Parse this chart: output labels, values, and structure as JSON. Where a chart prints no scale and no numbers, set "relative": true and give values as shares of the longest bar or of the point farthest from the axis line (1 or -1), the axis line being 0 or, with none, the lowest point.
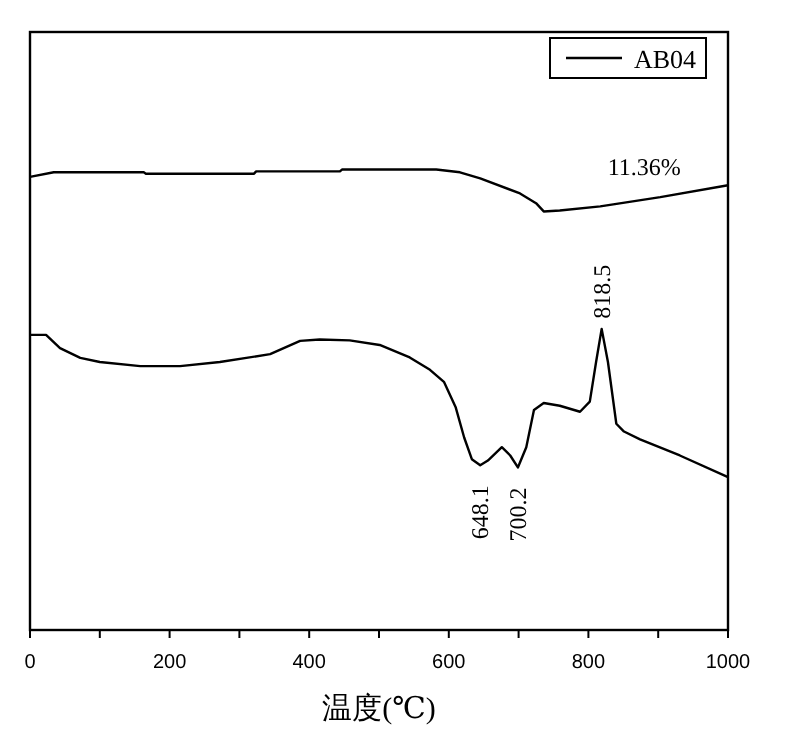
{
  "chart_data": {
    "type": "line",
    "relative": true,
    "xlabel": "温度(℃)",
    "xlim": [
      0,
      1000
    ],
    "xticks": [
      0,
      {
        "value": 100,
        "label": null
      },
      200,
      {
        "value": 300,
        "label": null
      },
      400,
      {
        "value": 500,
        "label": null
      },
      600,
      {
        "value": 700,
        "label": null
      },
      800,
      {
        "value": 900,
        "label": null
      },
      1000
    ],
    "tick_labels": "x",
    "legend": "top right",
    "grid": false,
    "marker": "none",
    "line_style": "solid",
    "series": [
      {
        "name": "AB04",
        "color": "#000000",
        "x": [
          0,
          34,
          163,
          166,
          321,
          324,
          444,
          447,
          582,
          616,
          645,
          702,
          725,
          736,
          759,
          817,
          903,
          1000
        ],
        "values": [
          0.984,
          0.994,
          0.994,
          0.991,
          0.991,
          0.996,
          0.996,
          1.0,
          1.0,
          0.994,
          0.981,
          0.948,
          0.927,
          0.909,
          0.911,
          0.92,
          0.94,
          0.966
        ]
      },
      {
        "color": "#000000",
        "x": [
          0,
          23,
          43,
          72,
          100,
          158,
          215,
          272,
          344,
          387,
          415,
          458,
          501,
          544,
          573,
          593,
          610,
          622,
          633,
          645,
          656,
          676,
          688,
          699,
          711,
          722,
          736,
          759,
          788,
          802,
          811,
          819,
          828,
          840,
          851,
          874,
          931,
          1000
        ],
        "values": [
          0.641,
          0.641,
          0.612,
          0.591,
          0.582,
          0.573,
          0.573,
          0.582,
          0.599,
          0.628,
          0.631,
          0.629,
          0.619,
          0.592,
          0.565,
          0.539,
          0.483,
          0.418,
          0.371,
          0.358,
          0.368,
          0.397,
          0.379,
          0.353,
          0.397,
          0.478,
          0.493,
          0.487,
          0.474,
          0.496,
          0.582,
          0.654,
          0.582,
          0.448,
          0.431,
          0.414,
          0.379,
          0.332
        ]
      }
    ],
    "annotations": [
      {
        "text": "11.36%",
        "x": 880,
        "y": 0.935
      },
      {
        "text": "648.1",
        "x": 645,
        "y": 0.358
      },
      {
        "text": "700.2",
        "x": 699,
        "y": 0.353
      },
      {
        "text": "818.5",
        "x": 819,
        "y": 0.654
      }
    ]
  }
}
